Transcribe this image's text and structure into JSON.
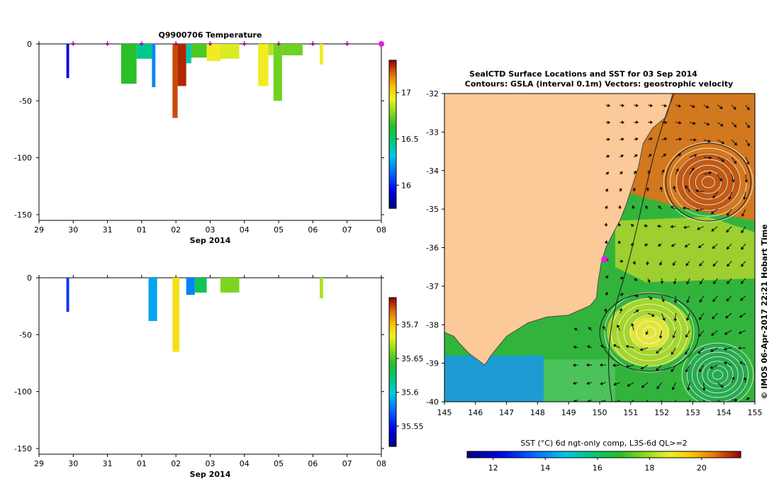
{
  "chart_data": [
    {
      "type": "heatmap",
      "title": "Q9900706  Temperature",
      "xlabel": "Sep 2014",
      "ylabel": "",
      "x_tick_labels": [
        "29",
        "30",
        "31",
        "01",
        "02",
        "03",
        "04",
        "05",
        "06",
        "07",
        "08"
      ],
      "y_ticks": [
        0,
        -50,
        -100,
        -150
      ],
      "ylim": [
        -155,
        0
      ],
      "colorbar": {
        "min": 15.75,
        "max": 17.35,
        "ticks": [
          16,
          16.5,
          17
        ]
      },
      "profile_markers_x": [
        1,
        2,
        3,
        4,
        5,
        6,
        7,
        8,
        9,
        10
      ],
      "columns": [
        {
          "x0": 0.8,
          "x1": 0.88,
          "depth": -30,
          "value": 15.95
        },
        {
          "x0": 2.4,
          "x1": 2.85,
          "depth": -35,
          "value": 16.65
        },
        {
          "x0": 2.85,
          "x1": 3.3,
          "depth": -13,
          "value": 16.45
        },
        {
          "x0": 3.3,
          "x1": 3.4,
          "depth": -38,
          "value": 16.2
        },
        {
          "x0": 3.9,
          "x1": 4.05,
          "depth": -65,
          "value": 17.25
        },
        {
          "x0": 4.05,
          "x1": 4.3,
          "depth": -37,
          "value": 17.3
        },
        {
          "x0": 4.3,
          "x1": 4.45,
          "depth": -17,
          "value": 16.4
        },
        {
          "x0": 4.45,
          "x1": 4.9,
          "depth": -12,
          "value": 16.7
        },
        {
          "x0": 4.9,
          "x1": 5.3,
          "depth": -15,
          "value": 16.95
        },
        {
          "x0": 5.3,
          "x1": 5.85,
          "depth": -13,
          "value": 16.9
        },
        {
          "x0": 6.4,
          "x1": 6.7,
          "depth": -37,
          "value": 16.95
        },
        {
          "x0": 6.7,
          "x1": 6.85,
          "depth": -10,
          "value": 16.85
        },
        {
          "x0": 6.85,
          "x1": 7.1,
          "depth": -50,
          "value": 16.75
        },
        {
          "x0": 7.1,
          "x1": 7.7,
          "depth": -10,
          "value": 16.75
        },
        {
          "x0": 8.2,
          "x1": 8.3,
          "depth": -18,
          "value": 16.95
        }
      ]
    },
    {
      "type": "heatmap",
      "title": "",
      "xlabel": "Sep 2014",
      "ylabel": "",
      "x_tick_labels": [
        "29",
        "30",
        "31",
        "01",
        "02",
        "03",
        "04",
        "05",
        "06",
        "07",
        "08"
      ],
      "y_ticks": [
        0,
        -50,
        -100,
        -150
      ],
      "ylim": [
        -155,
        0
      ],
      "colorbar": {
        "min": 35.52,
        "max": 35.74,
        "ticks": [
          35.55,
          35.6,
          35.65,
          35.7
        ]
      },
      "columns": [
        {
          "x0": 0.8,
          "x1": 0.88,
          "depth": -30,
          "value": 35.56
        },
        {
          "x0": 3.2,
          "x1": 3.45,
          "depth": -38,
          "value": 35.59
        },
        {
          "x0": 3.9,
          "x1": 4.1,
          "depth": -65,
          "value": 35.69
        },
        {
          "x0": 4.3,
          "x1": 4.55,
          "depth": -15,
          "value": 35.58
        },
        {
          "x0": 4.55,
          "x1": 4.9,
          "depth": -13,
          "value": 35.63
        },
        {
          "x0": 5.3,
          "x1": 5.85,
          "depth": -13,
          "value": 35.66
        },
        {
          "x0": 8.2,
          "x1": 8.3,
          "depth": -18,
          "value": 35.67
        }
      ]
    },
    {
      "type": "heatmap",
      "title_line1": "SealCTD Surface Locations and SST for 03 Sep 2014",
      "title_line2": "Contours: GSLA (interval 0.1m) Vectors: geostrophic velocity",
      "x_tick_labels": [
        "145",
        "146",
        "147",
        "148",
        "149",
        "150",
        "151",
        "152",
        "153",
        "154",
        "155"
      ],
      "y_tick_labels": [
        "-32",
        "-33",
        "-34",
        "-35",
        "-36",
        "-37",
        "-38",
        "-39",
        "-40"
      ],
      "xlim": [
        145,
        155
      ],
      "ylim": [
        -40,
        -32
      ],
      "colorbar_label": "SST (°C) 6d ngt-only comp, L3S-6d QL>=2",
      "colorbar": {
        "min": 11,
        "max": 21.5,
        "ticks": [
          "12",
          "14",
          "16",
          "18",
          "20"
        ]
      },
      "seal_location": {
        "lon": 150.15,
        "lat": -36.3
      },
      "side_label": "© IMOS 06-Apr-2017 22:21 Hobart Time"
    }
  ]
}
